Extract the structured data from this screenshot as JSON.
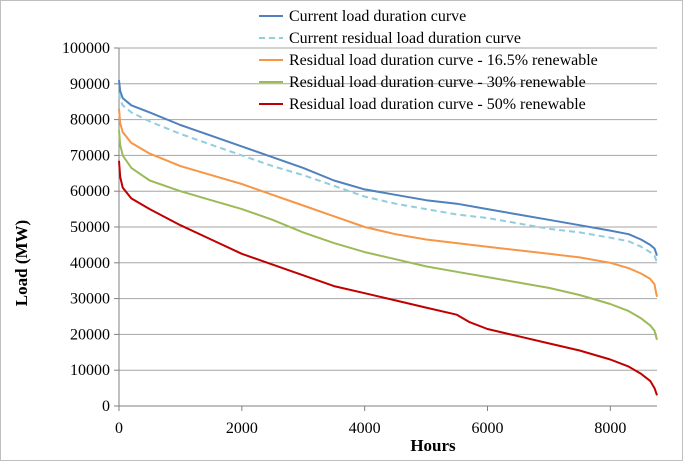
{
  "chart_data": {
    "type": "line",
    "title": "",
    "xlabel": "Hours",
    "ylabel": "Load (MW)",
    "xlim": [
      0,
      8760
    ],
    "ylim": [
      0,
      100000
    ],
    "x_ticks": [
      0,
      2000,
      4000,
      6000,
      8000
    ],
    "y_ticks": [
      0,
      10000,
      20000,
      30000,
      40000,
      50000,
      60000,
      70000,
      80000,
      90000,
      100000
    ],
    "grid": "horizontal",
    "legend_position": "top-right",
    "series": [
      {
        "name": "Current load duration curve",
        "color": "#4f81bd",
        "dash": "solid",
        "points": [
          [
            0,
            91000
          ],
          [
            20,
            88000
          ],
          [
            60,
            86000
          ],
          [
            200,
            84000
          ],
          [
            500,
            82000
          ],
          [
            1000,
            78500
          ],
          [
            1500,
            75500
          ],
          [
            2000,
            72500
          ],
          [
            2500,
            69500
          ],
          [
            3000,
            66500
          ],
          [
            3500,
            63000
          ],
          [
            4000,
            60500
          ],
          [
            4500,
            59000
          ],
          [
            5000,
            57500
          ],
          [
            5500,
            56500
          ],
          [
            6000,
            55000
          ],
          [
            6500,
            53500
          ],
          [
            7000,
            52000
          ],
          [
            7500,
            50500
          ],
          [
            8000,
            49000
          ],
          [
            8300,
            48000
          ],
          [
            8500,
            46500
          ],
          [
            8650,
            45000
          ],
          [
            8720,
            44000
          ],
          [
            8760,
            42000
          ]
        ]
      },
      {
        "name": "Current residual load duration curve",
        "color": "#93cddd",
        "dash": "dashed",
        "points": [
          [
            0,
            87500
          ],
          [
            20,
            85500
          ],
          [
            60,
            84000
          ],
          [
            200,
            82000
          ],
          [
            500,
            79500
          ],
          [
            1000,
            76000
          ],
          [
            1500,
            73000
          ],
          [
            2000,
            70000
          ],
          [
            2500,
            67000
          ],
          [
            3000,
            64500
          ],
          [
            3500,
            61500
          ],
          [
            4000,
            58500
          ],
          [
            4500,
            56500
          ],
          [
            5000,
            55000
          ],
          [
            5500,
            53500
          ],
          [
            6000,
            52500
          ],
          [
            6500,
            51000
          ],
          [
            7000,
            49500
          ],
          [
            7500,
            48500
          ],
          [
            8000,
            47000
          ],
          [
            8300,
            46000
          ],
          [
            8500,
            44500
          ],
          [
            8650,
            43000
          ],
          [
            8720,
            42000
          ],
          [
            8760,
            40000
          ]
        ]
      },
      {
        "name": "Residual load duration curve - 16.5% renewable",
        "color": "#f79646",
        "dash": "solid",
        "points": [
          [
            0,
            83000
          ],
          [
            20,
            79000
          ],
          [
            60,
            76500
          ],
          [
            200,
            73500
          ],
          [
            500,
            70500
          ],
          [
            1000,
            67000
          ],
          [
            1500,
            64500
          ],
          [
            2000,
            62000
          ],
          [
            2500,
            59000
          ],
          [
            3000,
            56000
          ],
          [
            3500,
            53000
          ],
          [
            4000,
            50000
          ],
          [
            4500,
            48000
          ],
          [
            5000,
            46500
          ],
          [
            5500,
            45500
          ],
          [
            6000,
            44500
          ],
          [
            6500,
            43500
          ],
          [
            7000,
            42500
          ],
          [
            7500,
            41500
          ],
          [
            8000,
            40000
          ],
          [
            8300,
            38500
          ],
          [
            8500,
            37000
          ],
          [
            8650,
            35500
          ],
          [
            8720,
            34000
          ],
          [
            8740,
            32000
          ],
          [
            8760,
            30500
          ]
        ]
      },
      {
        "name": "Residual load duration curve - 30% renewable",
        "color": "#9bbb59",
        "dash": "solid",
        "points": [
          [
            0,
            77000
          ],
          [
            20,
            73000
          ],
          [
            60,
            70000
          ],
          [
            200,
            66500
          ],
          [
            500,
            63000
          ],
          [
            1000,
            60000
          ],
          [
            1500,
            57500
          ],
          [
            2000,
            55000
          ],
          [
            2500,
            52000
          ],
          [
            3000,
            48500
          ],
          [
            3500,
            45500
          ],
          [
            4000,
            43000
          ],
          [
            4500,
            41000
          ],
          [
            5000,
            39000
          ],
          [
            5500,
            37500
          ],
          [
            6000,
            36000
          ],
          [
            6500,
            34500
          ],
          [
            7000,
            33000
          ],
          [
            7500,
            31000
          ],
          [
            8000,
            28500
          ],
          [
            8300,
            26500
          ],
          [
            8500,
            24500
          ],
          [
            8650,
            22500
          ],
          [
            8720,
            21000
          ],
          [
            8760,
            18500
          ]
        ]
      },
      {
        "name": "Residual load duration curve - 50% renewable",
        "color": "#c00000",
        "dash": "solid",
        "points": [
          [
            0,
            68500
          ],
          [
            20,
            64000
          ],
          [
            60,
            61000
          ],
          [
            200,
            58000
          ],
          [
            500,
            55000
          ],
          [
            1000,
            50500
          ],
          [
            1500,
            46500
          ],
          [
            2000,
            42500
          ],
          [
            2500,
            39500
          ],
          [
            3000,
            36500
          ],
          [
            3500,
            33500
          ],
          [
            4000,
            31500
          ],
          [
            4500,
            29500
          ],
          [
            5000,
            27500
          ],
          [
            5500,
            25500
          ],
          [
            5700,
            23500
          ],
          [
            6000,
            21500
          ],
          [
            6500,
            19500
          ],
          [
            7000,
            17500
          ],
          [
            7500,
            15500
          ],
          [
            8000,
            13000
          ],
          [
            8300,
            11000
          ],
          [
            8500,
            9000
          ],
          [
            8650,
            7000
          ],
          [
            8720,
            5000
          ],
          [
            8760,
            3000
          ]
        ]
      }
    ]
  }
}
